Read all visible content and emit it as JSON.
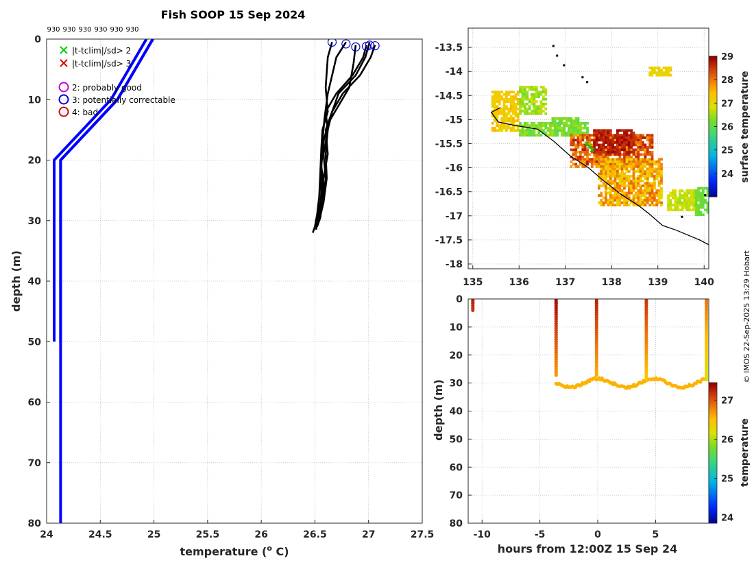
{
  "title": "Fish SOOP 15 Sep 2024",
  "credit": "© IMOS 22-Sep-2025 13:29 Hobart",
  "colors": {
    "profile": "#000000",
    "clim": "#0000ff",
    "marker": "#0000cc",
    "grid": "#bdbdbd",
    "axis": "#262626",
    "coast": "#000000"
  },
  "chart_data": [
    {
      "type": "line",
      "id": "profile",
      "xlabel": "temperature (",
      "xlabel_sup": "o",
      "xlabel_end": " C)",
      "ylabel": "depth (m)",
      "xlim": [
        24,
        27.5
      ],
      "ylim": [
        80,
        0
      ],
      "xticks": [
        "24",
        "24.5",
        "25",
        "25.5",
        "26",
        "26.5",
        "27",
        "27.5"
      ],
      "xtick_values": [
        24,
        24.5,
        25,
        25.5,
        26,
        26.5,
        27,
        27.5
      ],
      "yticks": [
        "0",
        "10",
        "20",
        "30",
        "40",
        "50",
        "60",
        "70",
        "80"
      ],
      "ytick_values": [
        0,
        10,
        20,
        30,
        40,
        50,
        60,
        70,
        80
      ],
      "drop_numbers": [
        "930",
        "930",
        "930",
        "930",
        "930",
        "930"
      ],
      "legend": [
        {
          "symbol": "x",
          "color": "#00cc00",
          "label": "|t-tclim|/sd> 2"
        },
        {
          "symbol": "x",
          "color": "#dd0000",
          "label": "|t-tclim|/sd> 3"
        },
        {
          "symbol": "o",
          "color": "#cc00cc",
          "label": "2: probably good"
        },
        {
          "symbol": "o",
          "color": "#0000dd",
          "label": "3: potentially correctable"
        },
        {
          "symbol": "o",
          "color": "#dd0000",
          "label": "4: bad"
        }
      ],
      "climatology": [
        {
          "name": "clim-2sd-low",
          "t": [
            24.93,
            24.6,
            24.07,
            24.07
          ],
          "z": [
            0,
            10,
            20,
            50
          ]
        },
        {
          "name": "clim-2sd-high",
          "t": [
            24.99,
            24.66,
            24.13,
            24.13
          ],
          "z": [
            0,
            10,
            20,
            50
          ]
        },
        {
          "name": "clim-3sd",
          "t": [
            24.99,
            24.66,
            24.13,
            24.13
          ],
          "z": [
            0,
            10,
            20,
            80
          ]
        }
      ],
      "series": [
        {
          "name": "drop-1",
          "t": [
            26.66,
            26.62,
            26.6,
            26.62,
            26.57,
            26.56,
            26.55,
            26.54,
            26.52,
            26.5,
            26.48
          ],
          "z": [
            0.5,
            3,
            8,
            12,
            15,
            18,
            22,
            26,
            29,
            31,
            32
          ]
        },
        {
          "name": "drop-2",
          "t": [
            26.79,
            26.7,
            26.66,
            26.62,
            26.59,
            26.57,
            26.56,
            26.56,
            26.55,
            26.53,
            26.51
          ],
          "z": [
            0.5,
            3,
            6,
            9,
            13,
            17,
            21,
            25,
            28,
            30,
            31.5
          ]
        },
        {
          "name": "drop-3",
          "t": [
            26.88,
            26.86,
            26.82,
            26.72,
            26.62,
            26.58,
            26.56,
            26.58,
            26.57,
            26.55,
            26.52
          ],
          "z": [
            1,
            4,
            8,
            11,
            14,
            17,
            21,
            24,
            27,
            29.5,
            31
          ]
        },
        {
          "name": "drop-4",
          "t": [
            26.98,
            26.95,
            26.85,
            26.7,
            26.6,
            26.62,
            26.58,
            26.6,
            26.58,
            26.55,
            26.51
          ],
          "z": [
            1,
            3,
            6,
            9,
            12,
            15,
            19,
            23,
            26,
            29,
            31
          ]
        },
        {
          "name": "drop-5",
          "t": [
            27.01,
            26.97,
            26.88,
            26.72,
            26.66,
            26.6,
            26.62,
            26.58,
            26.55,
            26.52
          ],
          "z": [
            0.5,
            3,
            6,
            9,
            12,
            15,
            19,
            23,
            27,
            30
          ]
        },
        {
          "name": "drop-6",
          "t": [
            27.06,
            27.02,
            26.92,
            26.76,
            26.66,
            26.62,
            26.6,
            26.61,
            26.58,
            26.54
          ],
          "z": [
            1,
            3,
            6,
            9,
            12,
            15,
            19,
            23,
            27,
            30
          ]
        }
      ],
      "markers_t": [
        26.66,
        26.79,
        26.88,
        26.98,
        27.01,
        27.06
      ],
      "markers_z": [
        0.5,
        0.8,
        1.3,
        1.2,
        1.0,
        1.1
      ]
    },
    {
      "type": "heatmap",
      "id": "sst-map",
      "colorbar_label": "surface temperature",
      "xlim": [
        134.9,
        140.1
      ],
      "ylim": [
        -18.1,
        -13.1
      ],
      "xticks": [
        "135",
        "136",
        "137",
        "138",
        "139",
        "140"
      ],
      "xtick_values": [
        135,
        136,
        137,
        138,
        139,
        140
      ],
      "yticks": [
        "-13.5",
        "-14",
        "-14.5",
        "-15",
        "-15.5",
        "-16",
        "-16.5",
        "-17",
        "-17.5",
        "-18"
      ],
      "ytick_values": [
        -13.5,
        -14,
        -14.5,
        -15,
        -15.5,
        -16,
        -16.5,
        -17,
        -17.5,
        -18
      ],
      "clim": [
        23,
        29
      ],
      "cbticks": [
        "24",
        "25",
        "26",
        "27",
        "28",
        "29"
      ],
      "cbtick_values": [
        24,
        25,
        26,
        27,
        28,
        29
      ],
      "coastline": [
        [
          135.6,
          -14.75
        ],
        [
          135.4,
          -14.85
        ],
        [
          135.55,
          -15.05
        ],
        [
          135.9,
          -15.12
        ],
        [
          136.4,
          -15.2
        ],
        [
          136.75,
          -15.45
        ],
        [
          137.1,
          -15.75
        ],
        [
          137.5,
          -16.0
        ],
        [
          137.8,
          -16.25
        ],
        [
          138.2,
          -16.55
        ],
        [
          138.6,
          -16.8
        ],
        [
          138.8,
          -16.95
        ],
        [
          139.1,
          -17.2
        ],
        [
          139.4,
          -17.3
        ],
        [
          139.9,
          -17.5
        ],
        [
          140.1,
          -17.6
        ]
      ],
      "dots": [
        [
          136.72,
          -13.45
        ],
        [
          136.8,
          -13.65
        ],
        [
          136.95,
          -13.85
        ],
        [
          137.35,
          -14.1
        ],
        [
          137.45,
          -14.2
        ],
        [
          140.0,
          -16.55
        ],
        [
          139.5,
          -17.0
        ]
      ],
      "swath": [
        {
          "lon0": 135.4,
          "lon1": 136.0,
          "lat0": -14.4,
          "lat1": -15.25,
          "tmin": 27.0,
          "tmax": 27.6
        },
        {
          "lon0": 136.0,
          "lon1": 136.6,
          "lat0": -14.3,
          "lat1": -14.9,
          "tmin": 26.2,
          "tmax": 26.9
        },
        {
          "lon0": 136.7,
          "lon1": 137.3,
          "lat0": -14.95,
          "lat1": -15.35,
          "tmin": 25.9,
          "tmax": 26.5
        },
        {
          "lon0": 136.0,
          "lon1": 137.5,
          "lat0": -15.05,
          "lat1": -15.35,
          "tmin": 26.0,
          "tmax": 26.6
        },
        {
          "lon0": 137.1,
          "lon1": 138.9,
          "lat0": -15.3,
          "lat1": -16.0,
          "tmin": 27.6,
          "tmax": 28.8
        },
        {
          "lon0": 137.6,
          "lon1": 138.5,
          "lat0": -15.2,
          "lat1": -15.7,
          "tmin": 28.5,
          "tmax": 29.0
        },
        {
          "lon0": 137.7,
          "lon1": 139.1,
          "lat0": -15.8,
          "lat1": -16.8,
          "tmin": 27.0,
          "tmax": 28.2
        },
        {
          "lon0": 139.2,
          "lon1": 139.9,
          "lat0": -16.45,
          "lat1": -16.9,
          "tmin": 26.5,
          "tmax": 27.1
        },
        {
          "lon0": 139.8,
          "lon1": 140.1,
          "lat0": -16.4,
          "lat1": -17.0,
          "tmin": 26.0,
          "tmax": 26.4
        },
        {
          "lon0": 138.8,
          "lon1": 139.3,
          "lat0": -13.9,
          "lat1": -14.1,
          "tmin": 27.0,
          "tmax": 27.3
        }
      ],
      "track": [
        [
          137.52,
          -15.55
        ],
        [
          137.58,
          -15.63
        ],
        [
          137.46,
          -15.5
        ]
      ]
    },
    {
      "type": "scatter",
      "id": "time-depth",
      "xlabel": "hours from 12:00Z 15 Sep 24",
      "ylabel": "depth (m)",
      "colorbar_label": "temperature",
      "xlim": [
        -11.2,
        9.6
      ],
      "ylim": [
        80,
        0
      ],
      "xticks": [
        "-10",
        "-5",
        "0",
        "5"
      ],
      "xtick_values": [
        -10,
        -5,
        0,
        5
      ],
      "yticks": [
        "0",
        "10",
        "20",
        "30",
        "40",
        "50",
        "60",
        "70",
        "80"
      ],
      "ytick_values": [
        0,
        10,
        20,
        30,
        40,
        50,
        60,
        70,
        80
      ],
      "clim": [
        23.85,
        27.45
      ],
      "cbticks": [
        "24",
        "25",
        "26",
        "27"
      ],
      "cbtick_values": [
        24,
        25,
        26,
        27
      ],
      "casts": [
        {
          "time": -10.8,
          "max_depth": 4,
          "surface_t": 27.3
        },
        {
          "time": -3.6,
          "max_depth": 27.5,
          "surface_t": 27.4
        },
        {
          "time": -0.1,
          "max_depth": 27.5,
          "surface_t": 27.3
        },
        {
          "time": 4.2,
          "max_depth": 29.5,
          "surface_t": 27.2
        },
        {
          "time": 9.4,
          "max_depth": 29,
          "surface_t": 26.9
        }
      ],
      "bottom_track": {
        "t0": -3.6,
        "t1": 9.4,
        "mean_depth": 30,
        "amplitude": 1.5,
        "temp": 26.6
      }
    }
  ]
}
